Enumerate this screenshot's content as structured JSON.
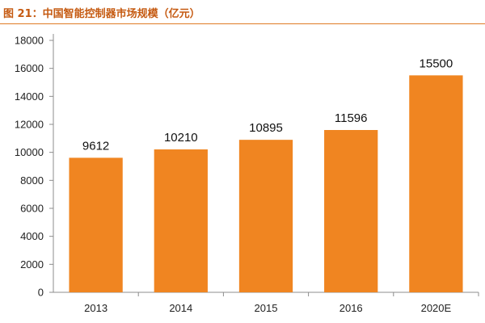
{
  "title": "图 21：中国智能控制器市场规模（亿元）",
  "colors": {
    "bar": "#f08521",
    "title": "#c55a11",
    "rule": "#e07b24",
    "axis": "#8c8c8c"
  },
  "chart_data": {
    "type": "bar",
    "title": "图 21：中国智能控制器市场规模（亿元）",
    "categories": [
      "2013",
      "2014",
      "2015",
      "2016",
      "2020E"
    ],
    "values": [
      9612,
      10210,
      10895,
      11596,
      15500
    ],
    "data_labels": [
      "9612",
      "10210",
      "10895",
      "11596",
      "15500"
    ],
    "xlabel": "",
    "ylabel": "",
    "ylim": [
      0,
      18000
    ],
    "yticks": [
      0,
      2000,
      4000,
      6000,
      8000,
      10000,
      12000,
      14000,
      16000,
      18000
    ],
    "grid": false,
    "legend": "none"
  }
}
